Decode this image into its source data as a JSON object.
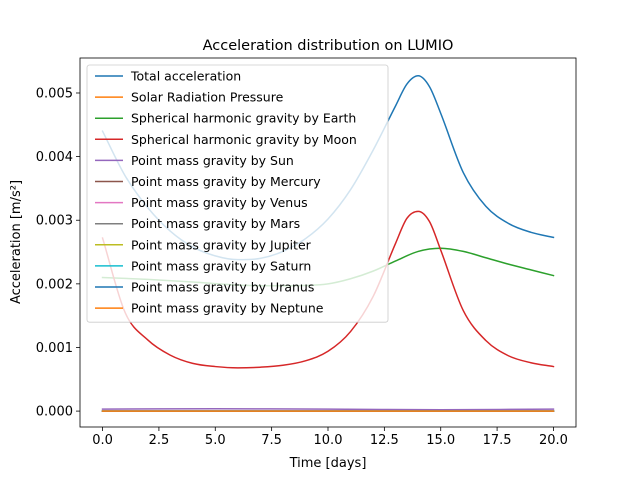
{
  "chart_data": {
    "type": "line",
    "title": "Acceleration distribution on LUMIO",
    "xlabel": "Time [days]",
    "ylabel": "Acceleration [m/s²]",
    "xlim": [
      -1.0,
      21.0
    ],
    "ylim": [
      -0.00025,
      0.00555
    ],
    "xticks": [
      0.0,
      2.5,
      5.0,
      7.5,
      10.0,
      12.5,
      15.0,
      17.5,
      20.0
    ],
    "xtick_labels": [
      "0.0",
      "2.5",
      "5.0",
      "7.5",
      "10.0",
      "12.5",
      "15.0",
      "17.5",
      "20.0"
    ],
    "yticks": [
      0.0,
      0.001,
      0.002,
      0.003,
      0.004,
      0.005
    ],
    "ytick_labels": [
      "0.000",
      "0.001",
      "0.002",
      "0.003",
      "0.004",
      "0.005"
    ],
    "grid": false,
    "legend_position": "upper-left",
    "series": [
      {
        "name": "Total acceleration",
        "color": "#1f77b4",
        "x": [
          0,
          1,
          2,
          3,
          4,
          5,
          6,
          7,
          8,
          9,
          10,
          11,
          12,
          13,
          13.5,
          14,
          14.5,
          15,
          16,
          17,
          18,
          19,
          20
        ],
        "y": [
          0.0044,
          0.0037,
          0.0032,
          0.00283,
          0.00258,
          0.00244,
          0.00238,
          0.0024,
          0.00251,
          0.00271,
          0.00302,
          0.00348,
          0.0041,
          0.0048,
          0.00514,
          0.00527,
          0.0051,
          0.00468,
          0.00375,
          0.00322,
          0.00295,
          0.00281,
          0.00273
        ]
      },
      {
        "name": "Solar Radiation Pressure",
        "color": "#ff7f0e",
        "x": [
          0,
          20
        ],
        "y": [
          3e-07,
          3e-07
        ]
      },
      {
        "name": "Spherical harmonic gravity by Earth",
        "color": "#2ca02c",
        "x": [
          0,
          2,
          4,
          6,
          8,
          10,
          11,
          12,
          13,
          14,
          15,
          16,
          17,
          18,
          19,
          20
        ],
        "y": [
          0.0021,
          0.00207,
          0.00203,
          0.00198,
          0.00197,
          0.002,
          0.00208,
          0.0022,
          0.00236,
          0.00251,
          0.00256,
          0.00251,
          0.00241,
          0.00231,
          0.00222,
          0.00213
        ]
      },
      {
        "name": "Spherical harmonic gravity by Moon",
        "color": "#d62728",
        "x": [
          0,
          1,
          2,
          3,
          4,
          5,
          6,
          7,
          8,
          9,
          10,
          11,
          12,
          13,
          13.5,
          14,
          14.5,
          15,
          16,
          17,
          18,
          19,
          20
        ],
        "y": [
          0.00272,
          0.00155,
          0.00112,
          0.00088,
          0.00075,
          0.0007,
          0.00068,
          0.00069,
          0.00072,
          0.00079,
          0.00094,
          0.00125,
          0.0018,
          0.00264,
          0.00303,
          0.00314,
          0.00298,
          0.00253,
          0.00158,
          0.00111,
          0.00087,
          0.00076,
          0.0007
        ]
      },
      {
        "name": "Point mass gravity by Sun",
        "color": "#9467bd",
        "x": [
          0,
          5,
          10,
          15,
          20
        ],
        "y": [
          3.1e-05,
          3.6e-05,
          3.1e-05,
          2.2e-05,
          3.1e-05
        ]
      },
      {
        "name": "Point mass gravity by Mercury",
        "color": "#8c564b",
        "x": [
          0,
          20
        ],
        "y": [
          0.0,
          0.0
        ]
      },
      {
        "name": "Point mass gravity by Venus",
        "color": "#e377c2",
        "x": [
          0,
          20
        ],
        "y": [
          0.0,
          0.0
        ]
      },
      {
        "name": "Point mass gravity by Mars",
        "color": "#7f7f7f",
        "x": [
          0,
          20
        ],
        "y": [
          0.0,
          0.0
        ]
      },
      {
        "name": "Point mass gravity by Jupiter",
        "color": "#bcbd22",
        "x": [
          0,
          20
        ],
        "y": [
          1e-07,
          1e-07
        ]
      },
      {
        "name": "Point mass gravity by Saturn",
        "color": "#17becf",
        "x": [
          0,
          20
        ],
        "y": [
          0.0,
          0.0
        ]
      },
      {
        "name": "Point mass gravity by Uranus",
        "color": "#1f77b4",
        "x": [
          0,
          20
        ],
        "y": [
          0.0,
          0.0
        ]
      },
      {
        "name": "Point mass gravity by Neptune",
        "color": "#ff7f0e",
        "x": [
          0,
          20
        ],
        "y": [
          0.0,
          0.0
        ]
      }
    ]
  }
}
